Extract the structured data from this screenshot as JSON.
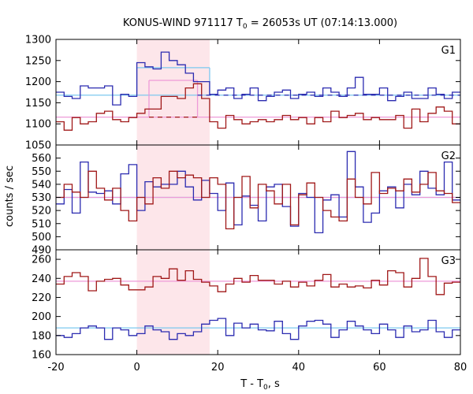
{
  "chart_data": {
    "type": "line",
    "title_main": "KONUS-WIND 971117 T",
    "title_sub": "0",
    "title_rest": " = 26053s UT (07:14:13.000)",
    "xlabel_main": "T - T",
    "xlabel_sub": "0",
    "xlabel_rest": ", s",
    "ylabel": "counts / sec",
    "xlim": [
      -20,
      80
    ],
    "x_ticks": [
      -20,
      0,
      20,
      40,
      60,
      80
    ],
    "x_tick_labels": [
      "-20",
      "0",
      "20",
      "40",
      "60",
      "80"
    ],
    "shaded_interval": [
      0,
      18
    ],
    "colors": {
      "blue": "#2b2bb0",
      "red": "#a01818",
      "cyan": "#7cc8ef",
      "pink": "#ee9ad8",
      "shade": "#fde6ea",
      "axis": "#000000"
    },
    "bin_edges": [
      -20,
      -18,
      -16,
      -14,
      -12,
      -10,
      -8,
      -6,
      -4,
      -2,
      0,
      2,
      4,
      6,
      8,
      10,
      12,
      14,
      16,
      18,
      20,
      22,
      24,
      26,
      28,
      30,
      32,
      34,
      36,
      38,
      40,
      42,
      44,
      46,
      48,
      50,
      52,
      54,
      56,
      58,
      60,
      62,
      64,
      66,
      68,
      70,
      72,
      74,
      76,
      78,
      80
    ],
    "panels": [
      {
        "label": "G1",
        "ylim": [
          1050,
          1300
        ],
        "y_ticks": [
          1050,
          1100,
          1150,
          1200,
          1250,
          1300
        ],
        "y_tick_labels": [
          "1050",
          "1100",
          "1150",
          "1200",
          "1250",
          "1300"
        ],
        "series": [
          {
            "color": "blue",
            "values": [
              1175,
              1165,
              1160,
              1190,
              1185,
              1185,
              1190,
              1145,
              1170,
              1165,
              1245,
              1235,
              1230,
              1270,
              1250,
              1240,
              1220,
              1200,
              1200,
              1170,
              1180,
              1185,
              1160,
              1170,
              1185,
              1155,
              1165,
              1175,
              1180,
              1160,
              1170,
              1175,
              1165,
              1185,
              1175,
              1165,
              1185,
              1210,
              1170,
              1170,
              1185,
              1155,
              1165,
              1175,
              1160,
              1160,
              1185,
              1170,
              1160,
              1175
            ]
          },
          {
            "color": "red",
            "values": [
              1105,
              1085,
              1115,
              1100,
              1105,
              1125,
              1130,
              1110,
              1105,
              1115,
              1125,
              1135,
              1135,
              1165,
              1165,
              1160,
              1185,
              1195,
              1160,
              1105,
              1090,
              1120,
              1110,
              1100,
              1105,
              1110,
              1105,
              1110,
              1120,
              1110,
              1115,
              1100,
              1115,
              1105,
              1130,
              1115,
              1120,
              1125,
              1110,
              1115,
              1110,
              1110,
              1120,
              1090,
              1135,
              1105,
              1125,
              1140,
              1130,
              1100
            ]
          }
        ],
        "background_levels": [
          {
            "color": "cyan",
            "value": 1168
          },
          {
            "color": "pink",
            "value": 1116
          }
        ],
        "interval_segments": [
          {
            "color": "cyan",
            "x": [
              0,
              18
            ],
            "value": 1233
          },
          {
            "color": "pink",
            "x": [
              3,
              15
            ],
            "value": 1203
          }
        ],
        "dashed_segments": [
          {
            "color": "blue",
            "x": [
              15,
              80
            ],
            "value": 1168
          },
          {
            "color": "red",
            "x": [
              3,
              15
            ],
            "value": 1116
          }
        ]
      },
      {
        "label": "G2",
        "ylim": [
          490,
          570
        ],
        "y_ticks": [
          490,
          500,
          510,
          520,
          530,
          540,
          550,
          560
        ],
        "y_tick_labels": [
          "490",
          "500",
          "510",
          "520",
          "530",
          "540",
          "550",
          "560"
        ],
        "series": [
          {
            "color": "blue",
            "values": [
              525,
              536,
              518,
              557,
              534,
              533,
              535,
              525,
              548,
              555,
              520,
              542,
              538,
              540,
              540,
              550,
              538,
              528,
              543,
              533,
              520,
              541,
              509,
              531,
              524,
              512,
              538,
              540,
              523,
              508,
              533,
              530,
              503,
              528,
              532,
              515,
              565,
              538,
              511,
              518,
              535,
              538,
              522,
              540,
              532,
              550,
              537,
              532,
              557,
              528
            ]
          },
          {
            "color": "red",
            "values": [
              530,
              540,
              534,
              530,
              550,
              537,
              528,
              537,
              520,
              512,
              530,
              525,
              545,
              537,
              550,
              545,
              547,
              545,
              530,
              545,
              540,
              506,
              530,
              546,
              522,
              540,
              535,
              525,
              540,
              509,
              532,
              541,
              530,
              520,
              515,
              512,
              544,
              530,
              525,
              549,
              533,
              537,
              535,
              544,
              534,
              540,
              549,
              535,
              533,
              526
            ]
          }
        ],
        "background_levels": [
          {
            "color": "cyan",
            "value": 530
          },
          {
            "color": "pink",
            "value": 530
          }
        ]
      },
      {
        "label": "G3",
        "ylim": [
          160,
          270
        ],
        "y_ticks": [
          160,
          180,
          200,
          220,
          240,
          260
        ],
        "y_tick_labels": [
          "160",
          "180",
          "200",
          "220",
          "240",
          "260"
        ],
        "series": [
          {
            "color": "blue",
            "values": [
              180,
              178,
              182,
              188,
              190,
              188,
              176,
              188,
              186,
              180,
              182,
              190,
              186,
              184,
              176,
              182,
              180,
              184,
              192,
              196,
              198,
              180,
              193,
              188,
              192,
              186,
              185,
              195,
              182,
              176,
              190,
              195,
              196,
              192,
              178,
              186,
              195,
              190,
              186,
              182,
              192,
              186,
              178,
              190,
              184,
              186,
              196,
              184,
              178,
              186
            ]
          },
          {
            "color": "red",
            "values": [
              234,
              242,
              246,
              242,
              227,
              237,
              239,
              240,
              233,
              228,
              228,
              231,
              242,
              240,
              250,
              238,
              248,
              239,
              236,
              232,
              226,
              234,
              240,
              236,
              243,
              238,
              238,
              234,
              237,
              231,
              236,
              232,
              238,
              244,
              231,
              234,
              231,
              232,
              230,
              238,
              233,
              248,
              246,
              231,
              240,
              261,
              242,
              223,
              235,
              236
            ]
          }
        ],
        "background_levels": [
          {
            "color": "cyan",
            "value": 188
          },
          {
            "color": "pink",
            "value": 237
          }
        ]
      }
    ]
  }
}
